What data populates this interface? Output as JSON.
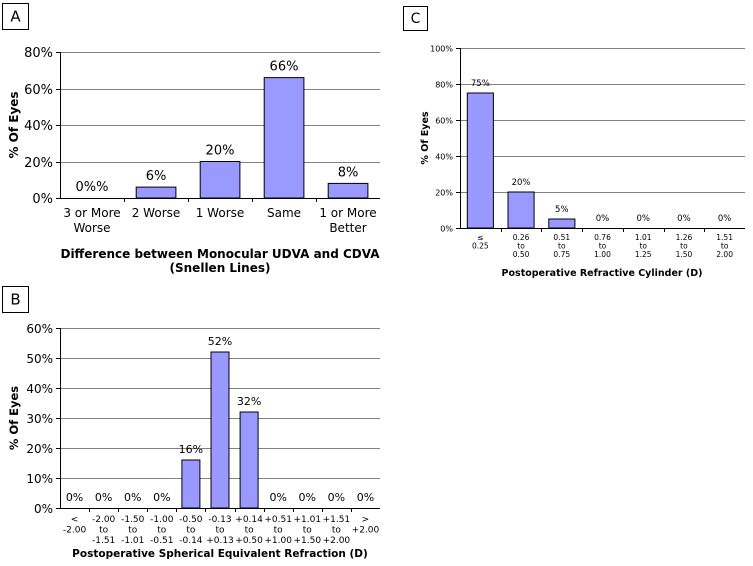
{
  "colors": {
    "bar": "#9999ff",
    "grid": "#808080"
  },
  "chart_data": [
    {
      "panel": "A",
      "type": "bar",
      "title": "",
      "xlabel": "Difference between Monocular UDVA and CDVA",
      "xlabel_line2": "(Snellen Lines)",
      "ylabel": "% Of Eyes",
      "ylim": [
        0,
        80
      ],
      "yticks": [
        "0%",
        "20%",
        "40%",
        "60%",
        "80%"
      ],
      "categories": [
        [
          "3 or More",
          "Worse"
        ],
        [
          "2 Worse"
        ],
        [
          "1 Worse"
        ],
        [
          "Same"
        ],
        [
          "1 or More",
          "Better"
        ]
      ],
      "values": [
        0,
        6,
        20,
        66,
        8
      ],
      "data_labels": [
        "0%%",
        "6%",
        "20%",
        "66%",
        "8%"
      ],
      "grid": true
    },
    {
      "panel": "B",
      "type": "bar",
      "title": "",
      "xlabel": "Postoperative Spherical Equivalent Refraction (D)",
      "ylabel": "% Of Eyes",
      "ylim": [
        0,
        60
      ],
      "yticks": [
        "0%",
        "10%",
        "20%",
        "30%",
        "40%",
        "50%",
        "60%"
      ],
      "categories": [
        [
          "<",
          "-2.00"
        ],
        [
          "-2.00",
          "to",
          "-1.51"
        ],
        [
          "-1.50",
          "to",
          "-1.01"
        ],
        [
          "-1.00",
          "to",
          "-0.51"
        ],
        [
          "-0.50",
          "to",
          "-0.14"
        ],
        [
          "-0.13",
          "to",
          "+0.13"
        ],
        [
          "+0.14",
          "to",
          "+0.50"
        ],
        [
          "+0.51",
          "to",
          "+1.00"
        ],
        [
          "+1.01",
          "to",
          "+1.50"
        ],
        [
          "+1.51",
          "to",
          "+2.00"
        ],
        [
          ">",
          "+2.00"
        ]
      ],
      "values": [
        0,
        0,
        0,
        0,
        16,
        52,
        32,
        0,
        0,
        0,
        0
      ],
      "data_labels": [
        "0%",
        "0%",
        "0%",
        "0%",
        "16%",
        "52%",
        "32%",
        "0%",
        "0%",
        "0%",
        "0%"
      ],
      "grid": true
    },
    {
      "panel": "C",
      "type": "bar",
      "title": "",
      "xlabel": "Postoperative Refractive Cylinder (D)",
      "ylabel": "% Of Eyes",
      "ylim": [
        0,
        100
      ],
      "yticks": [
        "0%",
        "20%",
        "40%",
        "60%",
        "80%",
        "100%"
      ],
      "categories": [
        [
          "≤",
          "0.25"
        ],
        [
          "0.26",
          "to",
          "0.50"
        ],
        [
          "0.51",
          "to",
          "0.75"
        ],
        [
          "0.76",
          "to",
          "1.00"
        ],
        [
          "1.01",
          "to",
          "1.25"
        ],
        [
          "1.26",
          "to",
          "1.50"
        ],
        [
          "1.51",
          "to",
          "2.00"
        ]
      ],
      "values": [
        75,
        20,
        5,
        0,
        0,
        0,
        0
      ],
      "data_labels": [
        "75%",
        "20%",
        "5%",
        "0%",
        "0%",
        "0%",
        "0%"
      ],
      "grid": true
    }
  ]
}
